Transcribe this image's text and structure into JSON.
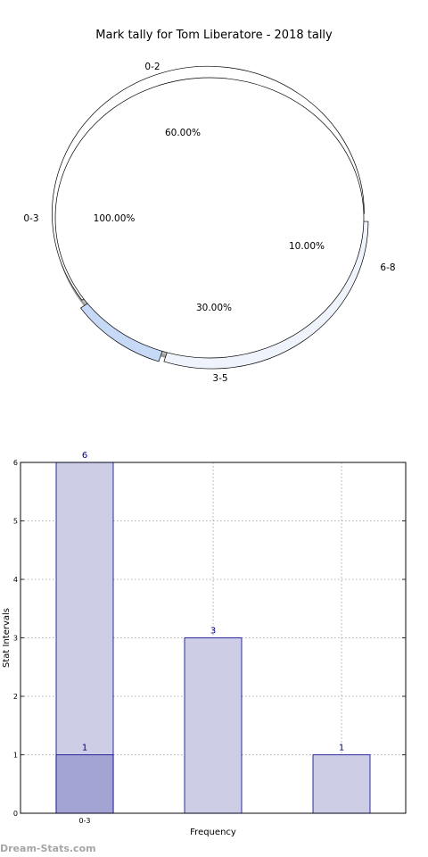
{
  "chart_data": [
    {
      "type": "pie",
      "title": "Mark tally for Tom Liberatore - 2018 tally",
      "rings": [
        {
          "name": "",
          "slices": [
            {
              "label": "0-2",
              "value": 60.0,
              "pct_label": "60.00%",
              "color": "#ffffff"
            },
            {
              "label": "6-8",
              "value": 10.0,
              "pct_label": "10.00%",
              "color": "#c6d9f7"
            },
            {
              "label": "3-5",
              "value": 30.0,
              "pct_label": "30.00%",
              "color": "#eef3fc"
            }
          ]
        },
        {
          "name": "",
          "slices": [
            {
              "label": "0-3",
              "value": 100.0,
              "pct_label": "100.00%",
              "color": "#ffffff"
            }
          ]
        }
      ]
    },
    {
      "type": "bar",
      "categories": [
        "0-3",
        "",
        ""
      ],
      "series": [
        {
          "values": [
            6,
            3,
            1
          ],
          "labels": [
            "6",
            "3",
            "1"
          ],
          "color": "#cdcde6"
        },
        {
          "values": [
            1,
            null,
            null
          ],
          "labels": [
            "1",
            "",
            ""
          ],
          "color": "#a3a3d4"
        }
      ],
      "xlabel": "Frequency",
      "ylabel": "Stat Intervals",
      "ylim": [
        0,
        6
      ],
      "yticks": [
        "0",
        "1",
        "2",
        "3",
        "4",
        "5",
        "6"
      ],
      "grid": true,
      "edge_color": "#00008b"
    }
  ],
  "watermark": "Dream-Stats.com"
}
